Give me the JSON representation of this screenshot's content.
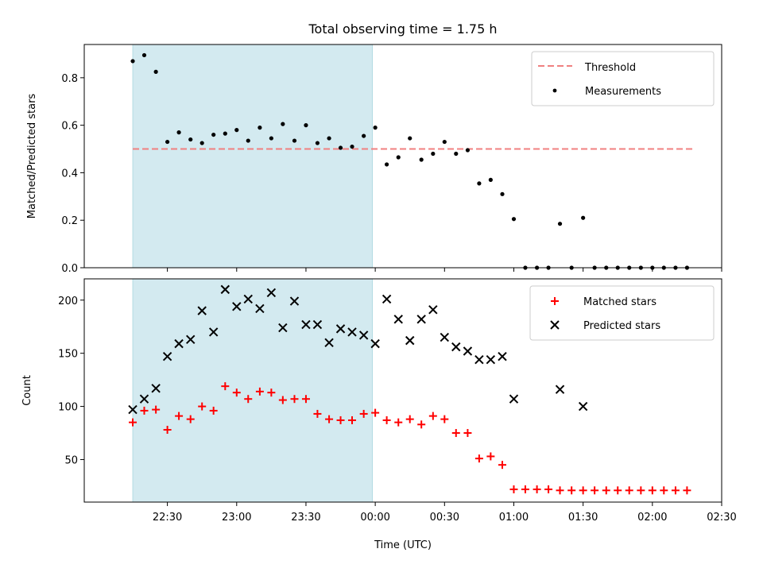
{
  "chart_data": [
    {
      "type": "scatter",
      "title": "Total observing time = 1.75 h",
      "xlabel": "",
      "ylabel": "Matched/Predicted stars",
      "ylim": [
        0,
        0.94
      ],
      "yticks": [
        "0.0",
        "0.2",
        "0.4",
        "0.6",
        "0.8"
      ],
      "ytick_values": [
        0.0,
        0.2,
        0.4,
        0.6,
        0.8
      ],
      "shaded_region": {
        "x_start": 22.25,
        "x_end": 23.98,
        "color": "#d3eaf0"
      },
      "legend": {
        "position": "top-right",
        "entries": [
          "Threshold",
          "Measurements"
        ]
      },
      "series": [
        {
          "name": "Threshold",
          "kind": "dashed-line",
          "color": "#f08080",
          "x": [
            22.25,
            26.3
          ],
          "y": [
            0.5,
            0.5
          ]
        },
        {
          "name": "Measurements",
          "kind": "dot",
          "color": "#000000",
          "x": [
            22.25,
            22.333,
            22.417,
            22.5,
            22.583,
            22.667,
            22.75,
            22.833,
            22.917,
            23.0,
            23.083,
            23.167,
            23.25,
            23.333,
            23.417,
            23.5,
            23.583,
            23.667,
            23.75,
            23.833,
            23.917,
            24.0,
            24.083,
            24.167,
            24.25,
            24.333,
            24.417,
            24.5,
            24.583,
            24.667,
            24.75,
            24.833,
            24.917,
            25.0,
            25.083,
            25.167,
            25.25,
            25.333,
            25.417,
            25.5,
            25.583,
            25.667,
            25.75,
            25.833,
            25.917,
            26.0,
            26.083,
            26.167,
            26.25
          ],
          "y": [
            0.87,
            0.895,
            0.825,
            0.53,
            0.57,
            0.54,
            0.525,
            0.56,
            0.565,
            0.58,
            0.535,
            0.59,
            0.545,
            0.605,
            0.535,
            0.6,
            0.525,
            0.545,
            0.505,
            0.51,
            0.555,
            0.59,
            0.435,
            0.465,
            0.545,
            0.455,
            0.48,
            0.53,
            0.48,
            0.495,
            0.355,
            0.37,
            0.31,
            0.205,
            0.0,
            0.0,
            0.0,
            0.185,
            0.0,
            0.21,
            0.0,
            0.0,
            0.0,
            0.0,
            0.0,
            0.0,
            0.0,
            0.0,
            0.0
          ]
        }
      ]
    },
    {
      "type": "scatter",
      "title": "",
      "xlabel": "Time (UTC)",
      "ylabel": "Count",
      "ylim": [
        10,
        220
      ],
      "yticks": [
        "50",
        "100",
        "150",
        "200"
      ],
      "ytick_values": [
        50,
        100,
        150,
        200
      ],
      "xlim": [
        21.9,
        26.5
      ],
      "xticks": [
        "22:30",
        "23:00",
        "23:30",
        "00:00",
        "00:30",
        "01:00",
        "01:30",
        "02:00",
        "02:30"
      ],
      "xtick_values": [
        22.5,
        23.0,
        23.5,
        24.0,
        24.5,
        25.0,
        25.5,
        26.0,
        26.5
      ],
      "shaded_region": {
        "x_start": 22.25,
        "x_end": 23.98,
        "color": "#d3eaf0"
      },
      "legend": {
        "position": "top-right",
        "entries": [
          "Matched stars",
          "Predicted stars"
        ]
      },
      "series": [
        {
          "name": "Matched stars",
          "kind": "plus",
          "color": "#ff0000",
          "x": [
            22.25,
            22.333,
            22.417,
            22.5,
            22.583,
            22.667,
            22.75,
            22.833,
            22.917,
            23.0,
            23.083,
            23.167,
            23.25,
            23.333,
            23.417,
            23.5,
            23.583,
            23.667,
            23.75,
            23.833,
            23.917,
            24.0,
            24.083,
            24.167,
            24.25,
            24.333,
            24.417,
            24.5,
            24.583,
            24.667,
            24.75,
            24.833,
            24.917,
            25.0,
            25.083,
            25.167,
            25.25,
            25.333,
            25.417,
            25.5,
            25.583,
            25.667,
            25.75,
            25.833,
            25.917,
            26.0,
            26.083,
            26.167,
            26.25
          ],
          "y": [
            85,
            96,
            97,
            78,
            91,
            88,
            100,
            96,
            119,
            113,
            107,
            114,
            113,
            106,
            107,
            107,
            93,
            88,
            87,
            87,
            93,
            94,
            87,
            85,
            88,
            83,
            91,
            88,
            75,
            75,
            51,
            53,
            45,
            22,
            22,
            22,
            22,
            21,
            21,
            21,
            21,
            21,
            21,
            21,
            21,
            21,
            21,
            21,
            21
          ]
        },
        {
          "name": "Predicted stars",
          "kind": "x",
          "color": "#000000",
          "x": [
            22.25,
            22.333,
            22.417,
            22.5,
            22.583,
            22.667,
            22.75,
            22.833,
            22.917,
            23.0,
            23.083,
            23.167,
            23.25,
            23.333,
            23.417,
            23.5,
            23.583,
            23.667,
            23.75,
            23.833,
            23.917,
            24.0,
            24.083,
            24.167,
            24.25,
            24.333,
            24.417,
            24.5,
            24.583,
            24.667,
            24.75,
            24.833,
            24.917,
            25.0,
            25.333,
            25.5
          ],
          "y": [
            97,
            107,
            117,
            147,
            159,
            163,
            190,
            170,
            210,
            194,
            201,
            192,
            207,
            174,
            199,
            177,
            177,
            160,
            173,
            170,
            167,
            159,
            201,
            182,
            162,
            182,
            191,
            165,
            156,
            152,
            144,
            144,
            147,
            107,
            116,
            100
          ]
        }
      ]
    }
  ]
}
